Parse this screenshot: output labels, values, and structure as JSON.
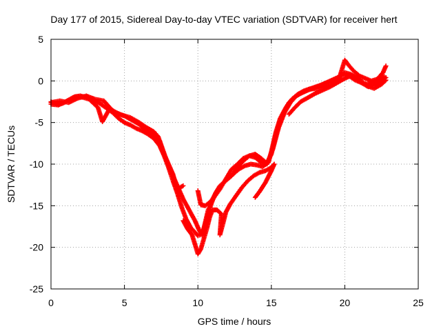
{
  "chart_data": {
    "type": "scatter",
    "title": "Day 177 of 2015, Sidereal Day-to-day VTEC variation (SDTVAR) for receiver hert",
    "xlabel": "GPS time / hours",
    "ylabel": "SDTVAR / TECUs",
    "xlim": [
      0,
      25
    ],
    "ylim": [
      -25,
      5
    ],
    "xticks": [
      0,
      5,
      10,
      15,
      20,
      25
    ],
    "yticks": [
      5,
      0,
      -5,
      -10,
      -15,
      -20,
      -25
    ],
    "grid": true,
    "marker": "plus",
    "color": "#ff0000",
    "series": [
      {
        "points": [
          [
            0,
            -2.5
          ],
          [
            0.4,
            -2.8
          ],
          [
            0.8,
            -2.7
          ],
          [
            1.2,
            -2.3
          ],
          [
            1.6,
            -1.9
          ],
          [
            2.0,
            -1.8
          ],
          [
            2.5,
            -2.0
          ],
          [
            3.0,
            -2.4
          ],
          [
            3.4,
            -2.8
          ],
          [
            3.8,
            -3.3
          ],
          [
            4.2,
            -3.8
          ],
          [
            4.6,
            -4.5
          ],
          [
            5.0,
            -5.0
          ],
          [
            5.4,
            -5.3
          ],
          [
            5.8,
            -5.7
          ],
          [
            6.2,
            -6.0
          ],
          [
            6.6,
            -6.4
          ],
          [
            7.0,
            -6.9
          ],
          [
            7.4,
            -7.8
          ],
          [
            7.7,
            -9.0
          ],
          [
            8.0,
            -10.4
          ],
          [
            8.3,
            -12.0
          ],
          [
            8.6,
            -13.5
          ],
          [
            8.9,
            -15.2
          ],
          [
            9.2,
            -16.6
          ],
          [
            9.5,
            -17.6
          ],
          [
            9.8,
            -18.2
          ],
          [
            10.0,
            -18.6
          ],
          [
            10.2,
            -18.5
          ],
          [
            10.4,
            -17.8
          ],
          [
            10.6,
            -16.6
          ],
          [
            10.8,
            -15.4
          ],
          [
            11.0,
            -14.2
          ],
          [
            11.3,
            -13.2
          ],
          [
            11.6,
            -12.5
          ],
          [
            12.0,
            -11.8
          ],
          [
            12.4,
            -11.2
          ],
          [
            12.8,
            -10.6
          ],
          [
            13.2,
            -10.2
          ],
          [
            13.6,
            -10.0
          ],
          [
            14.0,
            -10.1
          ],
          [
            14.4,
            -10.3
          ],
          [
            14.8,
            -9.8
          ],
          [
            15.0,
            -8.5
          ],
          [
            15.3,
            -6.2
          ],
          [
            15.6,
            -4.5
          ],
          [
            15.9,
            -3.5
          ],
          [
            16.2,
            -2.6
          ],
          [
            16.6,
            -1.9
          ],
          [
            17.0,
            -1.5
          ],
          [
            17.5,
            -1.1
          ],
          [
            18.0,
            -0.8
          ],
          [
            18.5,
            -0.4
          ],
          [
            19.0,
            0.0
          ],
          [
            19.5,
            0.4
          ],
          [
            19.9,
            0.8
          ],
          [
            20.3,
            0.6
          ],
          [
            20.7,
            0.1
          ],
          [
            21.1,
            -0.2
          ],
          [
            21.5,
            -0.4
          ],
          [
            21.9,
            -0.2
          ],
          [
            22.3,
            0.1
          ],
          [
            22.7,
            0.5
          ]
        ]
      },
      {
        "points": [
          [
            0,
            -2.8
          ],
          [
            0.5,
            -2.9
          ],
          [
            1.0,
            -2.5
          ],
          [
            1.5,
            -2.0
          ],
          [
            2.0,
            -1.9
          ],
          [
            2.6,
            -2.2
          ],
          [
            3.2,
            -3.2
          ],
          [
            3.5,
            -4.9
          ],
          [
            4.0,
            -3.3
          ],
          [
            4.5,
            -3.9
          ],
          [
            5.0,
            -4.2
          ],
          [
            5.5,
            -4.7
          ],
          [
            6.0,
            -5.2
          ],
          [
            6.5,
            -6.0
          ],
          [
            7.0,
            -6.6
          ],
          [
            7.4,
            -7.2
          ],
          [
            7.8,
            -9.2
          ],
          [
            8.2,
            -11.0
          ],
          [
            8.6,
            -12.6
          ],
          [
            9.0,
            -14.2
          ],
          [
            9.4,
            -15.5
          ],
          [
            9.8,
            -16.8
          ],
          [
            10.1,
            -18.0
          ],
          [
            10.3,
            -18.5
          ],
          [
            10.5,
            -17.0
          ],
          [
            10.7,
            -15.5
          ],
          [
            10.9,
            -14.8
          ],
          [
            11.2,
            -13.5
          ],
          [
            11.5,
            -12.6
          ],
          [
            11.9,
            -12.0
          ],
          [
            12.3,
            -11.4
          ],
          [
            12.7,
            -10.4
          ],
          [
            13.1,
            -9.6
          ],
          [
            13.5,
            -9.0
          ],
          [
            13.9,
            -8.8
          ],
          [
            14.3,
            -9.3
          ],
          [
            14.7,
            -9.9
          ],
          [
            15.0,
            -8.8
          ],
          [
            15.3,
            -6.5
          ],
          [
            15.6,
            -4.8
          ],
          [
            16.0,
            -3.2
          ],
          [
            16.4,
            -2.2
          ],
          [
            16.8,
            -1.6
          ],
          [
            17.2,
            -1.2
          ],
          [
            17.7,
            -0.9
          ],
          [
            18.2,
            -0.6
          ],
          [
            18.7,
            -0.3
          ],
          [
            19.2,
            0.0
          ],
          [
            19.7,
            0.5
          ],
          [
            20.0,
            1.0
          ],
          [
            20.4,
            0.8
          ],
          [
            20.8,
            0.3
          ],
          [
            21.2,
            -0.3
          ],
          [
            21.6,
            -0.7
          ],
          [
            22.0,
            -0.5
          ],
          [
            22.4,
            -0.1
          ],
          [
            22.8,
            0.4
          ]
        ]
      },
      {
        "points": [
          [
            0,
            -2.6
          ],
          [
            0.6,
            -2.4
          ],
          [
            1.2,
            -2.6
          ],
          [
            1.8,
            -2.1
          ],
          [
            2.4,
            -1.8
          ],
          [
            3.0,
            -2.2
          ],
          [
            3.6,
            -2.4
          ],
          [
            4.2,
            -3.6
          ],
          [
            4.8,
            -4.1
          ],
          [
            5.4,
            -4.4
          ],
          [
            6.0,
            -5.0
          ],
          [
            6.5,
            -5.6
          ],
          [
            7.0,
            -6.1
          ],
          [
            7.3,
            -6.7
          ],
          [
            7.6,
            -8.4
          ],
          [
            8.0,
            -10.0
          ],
          [
            8.3,
            -11.2
          ],
          [
            8.5,
            -12.6
          ],
          [
            8.7,
            -12.9
          ],
          [
            9.0,
            -12.6
          ],
          [
            10.0,
            -13.2
          ],
          [
            10.2,
            -14.9
          ],
          [
            10.5,
            -15.0
          ],
          [
            10.8,
            -14.6
          ],
          [
            11.1,
            -14.0
          ],
          [
            11.5,
            -13.0
          ],
          [
            11.9,
            -11.8
          ],
          [
            12.3,
            -10.6
          ],
          [
            12.7,
            -10.0
          ],
          [
            13.1,
            -9.3
          ],
          [
            13.5,
            -9.0
          ],
          [
            13.9,
            -9.2
          ],
          [
            14.3,
            -9.8
          ],
          [
            14.7,
            -10.0
          ],
          [
            15.1,
            -8.2
          ],
          [
            15.5,
            -5.6
          ],
          [
            15.9,
            -3.8
          ],
          [
            16.3,
            -2.6
          ],
          [
            16.7,
            -1.8
          ],
          [
            17.1,
            -1.4
          ],
          [
            17.6,
            -1.0
          ],
          [
            18.1,
            -0.9
          ],
          [
            18.6,
            -0.7
          ],
          [
            19.1,
            -0.5
          ],
          [
            19.6,
            0.2
          ],
          [
            20.0,
            2.5
          ],
          [
            20.3,
            1.8
          ],
          [
            20.6,
            1.2
          ],
          [
            21.0,
            0.6
          ],
          [
            21.4,
            0.3
          ],
          [
            21.8,
            0.0
          ],
          [
            22.2,
            0.2
          ],
          [
            22.6,
            1.0
          ],
          [
            22.8,
            1.8
          ]
        ]
      },
      {
        "points": [
          [
            9.0,
            -16.8
          ],
          [
            9.3,
            -17.8
          ],
          [
            9.6,
            -18.5
          ],
          [
            9.9,
            -20.2
          ],
          [
            10.0,
            -20.8
          ],
          [
            10.2,
            -20.2
          ],
          [
            10.4,
            -19.0
          ],
          [
            10.6,
            -17.8
          ],
          [
            10.8,
            -16.4
          ],
          [
            11.0,
            -15.5
          ],
          [
            11.3,
            -15.5
          ],
          [
            11.6,
            -16.0
          ],
          [
            11.5,
            -18.5
          ],
          [
            11.7,
            -17.2
          ],
          [
            11.9,
            -15.8
          ],
          [
            12.2,
            -14.8
          ],
          [
            12.6,
            -13.8
          ],
          [
            13.0,
            -12.8
          ],
          [
            13.4,
            -12.0
          ],
          [
            13.8,
            -11.4
          ],
          [
            14.2,
            -11.0
          ],
          [
            14.6,
            -10.8
          ],
          [
            15.0,
            -10.4
          ],
          [
            15.2,
            -10.0
          ],
          [
            15.0,
            -10.8
          ],
          [
            14.6,
            -12.2
          ],
          [
            14.2,
            -13.3
          ],
          [
            13.9,
            -14.0
          ],
          [
            16.2,
            -4.0
          ],
          [
            16.6,
            -3.2
          ],
          [
            17.0,
            -2.5
          ],
          [
            17.5,
            -2.0
          ],
          [
            18.0,
            -1.5
          ],
          [
            18.5,
            -1.1
          ],
          [
            19.0,
            -0.7
          ],
          [
            19.5,
            -0.2
          ],
          [
            20.0,
            0.3
          ],
          [
            20.5,
            0.7
          ],
          [
            21.0,
            0.2
          ],
          [
            21.5,
            -0.6
          ],
          [
            22.0,
            -0.9
          ],
          [
            22.5,
            -0.4
          ],
          [
            22.8,
            0.1
          ]
        ]
      }
    ]
  }
}
